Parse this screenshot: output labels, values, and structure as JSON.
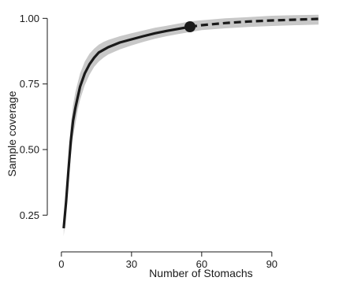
{
  "chart_data": {
    "type": "line",
    "title": "",
    "xlabel": "Number of Stomachs",
    "ylabel": "Sample coverage",
    "xlim": [
      -4,
      114
    ],
    "ylim": [
      0.14,
      1.04
    ],
    "x_ticks": [
      0,
      30,
      60,
      90
    ],
    "x_tick_labels": [
      "0",
      "30",
      "60",
      "90"
    ],
    "y_ticks": [
      0.25,
      0.5,
      0.75,
      1.0
    ],
    "y_tick_labels": [
      "0.25",
      "0.50",
      "0.75",
      "1.00"
    ],
    "grid": false,
    "legend": "none",
    "observed_sample_size": 55,
    "series": [
      {
        "style": "solid",
        "color": "#1a1a1a",
        "x": [
          1,
          2,
          3,
          4,
          5,
          6,
          7,
          8,
          10,
          12,
          14,
          16,
          18,
          20,
          25,
          30,
          35,
          40,
          45,
          50,
          55
        ],
        "y": [
          0.2,
          0.3,
          0.42,
          0.53,
          0.61,
          0.66,
          0.7,
          0.74,
          0.79,
          0.825,
          0.85,
          0.87,
          0.88,
          0.89,
          0.908,
          0.92,
          0.932,
          0.943,
          0.952,
          0.96,
          0.968
        ]
      },
      {
        "style": "dashed",
        "color": "#1a1a1a",
        "x": [
          55,
          60,
          70,
          80,
          90,
          100,
          110
        ],
        "y": [
          0.968,
          0.974,
          0.982,
          0.988,
          0.992,
          0.995,
          0.998
        ]
      }
    ],
    "confidence_band": {
      "color": "#c8c8c8",
      "x": [
        1,
        2,
        3,
        4,
        5,
        6,
        7,
        8,
        10,
        12,
        14,
        16,
        18,
        20,
        25,
        30,
        35,
        40,
        45,
        50,
        55,
        60,
        70,
        80,
        90,
        100,
        110
      ],
      "lower": [
        0.17,
        0.26,
        0.37,
        0.47,
        0.55,
        0.6,
        0.65,
        0.69,
        0.745,
        0.785,
        0.815,
        0.835,
        0.85,
        0.862,
        0.882,
        0.897,
        0.91,
        0.922,
        0.932,
        0.94,
        0.948,
        0.955,
        0.962,
        0.967,
        0.971,
        0.974,
        0.976
      ],
      "upper": [
        0.23,
        0.34,
        0.47,
        0.59,
        0.67,
        0.72,
        0.755,
        0.79,
        0.835,
        0.865,
        0.885,
        0.9,
        0.91,
        0.918,
        0.932,
        0.943,
        0.954,
        0.964,
        0.972,
        0.98,
        0.988,
        0.993,
        1.0,
        1.005,
        1.01,
        1.012,
        1.014
      ]
    }
  }
}
